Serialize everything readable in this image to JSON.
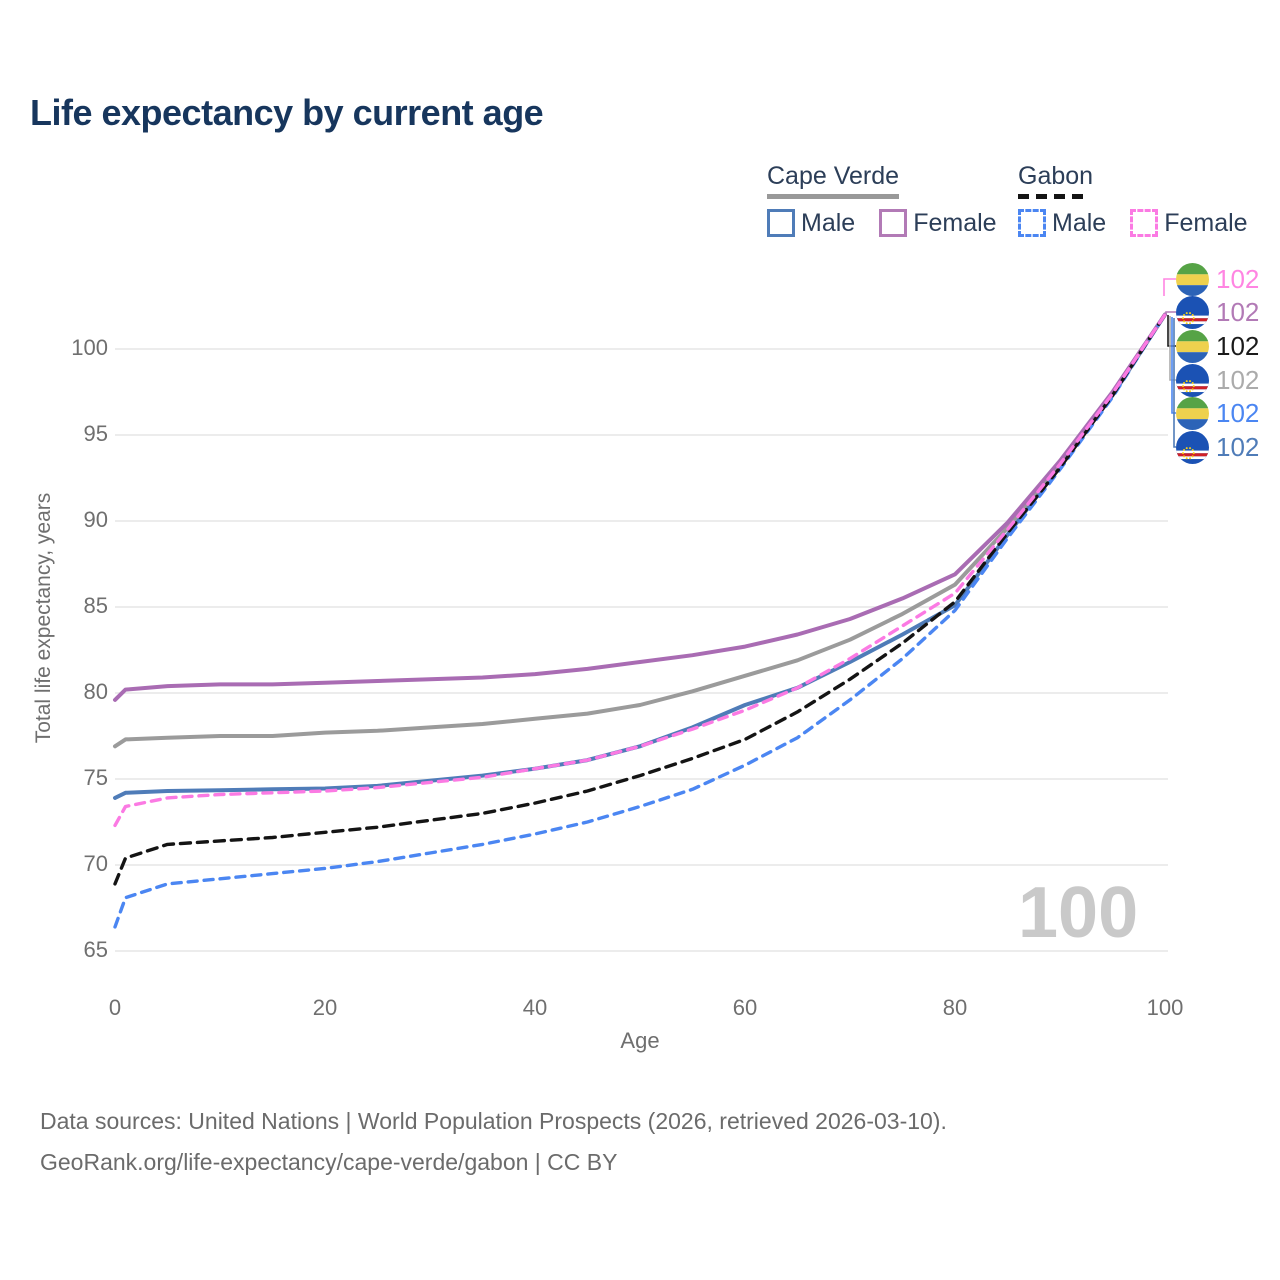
{
  "title": "Life expectancy by current age",
  "legend": {
    "groups": [
      {
        "name": "Cape Verde",
        "line_style": "solid",
        "underline_color": "#999999",
        "items": [
          {
            "label": "Male",
            "color": "#4f7cb8",
            "dashed": false
          },
          {
            "label": "Female",
            "color": "#b27ab6",
            "dashed": false
          }
        ]
      },
      {
        "name": "Gabon",
        "line_style": "dashed",
        "underline_color": "#141414",
        "items": [
          {
            "label": "Male",
            "color": "#4b86f2",
            "dashed": true
          },
          {
            "label": "Female",
            "color": "#fb7ae3",
            "dashed": true
          }
        ]
      }
    ]
  },
  "y_axis": {
    "title": "Total life expectancy, years",
    "ticks": [
      65,
      70,
      75,
      80,
      85,
      90,
      95,
      100
    ],
    "range": [
      63.5,
      103
    ]
  },
  "x_axis": {
    "title": "Age",
    "ticks": [
      0,
      20,
      40,
      60,
      80,
      100
    ],
    "range": [
      0,
      100
    ]
  },
  "watermark": "100",
  "end_labels": [
    {
      "series": "Gabon Female",
      "flag": "gabon",
      "value": "102",
      "color": "#ff85e2"
    },
    {
      "series": "Cape Verde Female",
      "flag": "cape-verde",
      "value": "102",
      "color": "#b27ab6"
    },
    {
      "series": "Gabon",
      "flag": "gabon",
      "value": "102",
      "color": "#1a1a1a"
    },
    {
      "series": "Cape Verde",
      "flag": "cape-verde",
      "value": "102",
      "color": "#ababab"
    },
    {
      "series": "Gabon Male",
      "flag": "gabon",
      "value": "102",
      "color": "#4b86f2"
    },
    {
      "series": "Cape Verde Male",
      "flag": "cape-verde",
      "value": "102",
      "color": "#4f7cb8"
    }
  ],
  "footer": {
    "line1": "Data sources: United Nations | World Population Prospects (2026, retrieved 2026-03-10).",
    "line2": "GeoRank.org/life-expectancy/cape-verde/gabon | CC BY"
  },
  "chart_data": {
    "type": "line",
    "title": "Life expectancy by current age",
    "xlabel": "Age",
    "ylabel": "Total life expectancy, years",
    "xlim": [
      0,
      100
    ],
    "ylim": [
      63.5,
      103
    ],
    "grid": "horizontal",
    "x": [
      0,
      1,
      5,
      10,
      15,
      20,
      25,
      30,
      35,
      40,
      45,
      50,
      55,
      60,
      65,
      70,
      75,
      80,
      85,
      90,
      95,
      100
    ],
    "series": [
      {
        "id": "cape-verde-male",
        "name": "Cape Verde Male",
        "country": "Cape Verde",
        "sex": "Male",
        "color": "#4f7cb8",
        "dash": null,
        "width": 4,
        "values": [
          73.9,
          74.2,
          74.3,
          74.35,
          74.4,
          74.45,
          74.6,
          74.9,
          75.2,
          75.6,
          76.1,
          76.9,
          78.0,
          79.3,
          80.3,
          81.8,
          83.4,
          85.1,
          89.2,
          93.2,
          97.3,
          102
        ]
      },
      {
        "id": "cape-verde-both",
        "name": "Cape Verde",
        "country": "Cape Verde",
        "sex": "Both",
        "color": "#9b9b9b",
        "dash": null,
        "width": 4,
        "values": [
          76.9,
          77.3,
          77.4,
          77.5,
          77.5,
          77.7,
          77.8,
          78.0,
          78.2,
          78.5,
          78.8,
          79.3,
          80.1,
          81.0,
          81.9,
          83.1,
          84.6,
          86.3,
          89.6,
          93.4,
          97.4,
          102
        ]
      },
      {
        "id": "cape-verde-female",
        "name": "Cape Verde Female",
        "country": "Cape Verde",
        "sex": "Female",
        "color": "#a96cb3",
        "dash": null,
        "width": 4,
        "values": [
          79.6,
          80.2,
          80.4,
          80.5,
          80.5,
          80.6,
          80.7,
          80.8,
          80.9,
          81.1,
          81.4,
          81.8,
          82.2,
          82.7,
          83.4,
          84.3,
          85.5,
          86.9,
          89.9,
          93.5,
          97.5,
          102
        ]
      },
      {
        "id": "gabon-male",
        "name": "Gabon Male",
        "country": "Gabon",
        "sex": "Male",
        "color": "#4b86f2",
        "dash": "9 7",
        "width": 3.4,
        "values": [
          66.4,
          68.1,
          68.9,
          69.2,
          69.5,
          69.8,
          70.2,
          70.7,
          71.2,
          71.8,
          72.5,
          73.4,
          74.4,
          75.8,
          77.4,
          79.6,
          82.0,
          84.8,
          89.0,
          93.0,
          97.2,
          102
        ]
      },
      {
        "id": "gabon-both",
        "name": "Gabon",
        "country": "Gabon",
        "sex": "Both",
        "color": "#141414",
        "dash": "10 7",
        "width": 3.4,
        "values": [
          68.9,
          70.4,
          71.2,
          71.4,
          71.6,
          71.9,
          72.2,
          72.6,
          73.0,
          73.6,
          74.3,
          75.2,
          76.2,
          77.3,
          78.9,
          80.8,
          82.9,
          85.3,
          89.3,
          93.1,
          97.3,
          102
        ]
      },
      {
        "id": "gabon-female",
        "name": "Gabon Female",
        "country": "Gabon",
        "sex": "Female",
        "color": "#fb7ae3",
        "dash": "9 7",
        "width": 3.4,
        "values": [
          72.3,
          73.4,
          73.9,
          74.1,
          74.2,
          74.3,
          74.5,
          74.8,
          75.1,
          75.6,
          76.1,
          76.9,
          77.9,
          79.0,
          80.3,
          82.0,
          83.9,
          85.8,
          89.5,
          93.3,
          97.4,
          102
        ]
      }
    ]
  }
}
